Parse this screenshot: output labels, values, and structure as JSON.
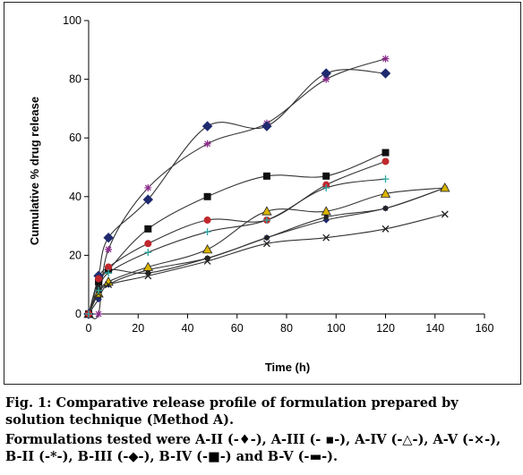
{
  "chart_data": {
    "type": "line",
    "xlabel": "Time (h)",
    "ylabel": "Cumulative % drug release",
    "xlim": [
      0,
      160
    ],
    "ylim": [
      0,
      100
    ],
    "xticks": [
      0,
      20,
      40,
      60,
      80,
      100,
      120,
      140,
      160
    ],
    "yticks": [
      0,
      20,
      40,
      60,
      80,
      100
    ],
    "grid": false,
    "legend": "none",
    "series": [
      {
        "name": "A-II",
        "marker": "diamond-small",
        "color": "#1f2a6e",
        "points": [
          [
            0,
            0
          ],
          [
            4,
            5
          ],
          [
            8,
            10
          ],
          [
            24,
            15
          ],
          [
            48,
            19
          ],
          [
            72,
            26
          ],
          [
            96,
            32
          ],
          [
            120,
            36
          ],
          [
            144,
            43
          ]
        ]
      },
      {
        "name": "A-III",
        "marker": "square-small",
        "color": "#222222",
        "points": [
          [
            0,
            0
          ],
          [
            4,
            9
          ],
          [
            8,
            15
          ],
          [
            24,
            14
          ],
          [
            48,
            19
          ],
          [
            72,
            26
          ],
          [
            96,
            33
          ],
          [
            120,
            36
          ],
          [
            144,
            43
          ]
        ]
      },
      {
        "name": "A-IV",
        "marker": "triangle",
        "color": "#d9b400",
        "points": [
          [
            0,
            0
          ],
          [
            4,
            7
          ],
          [
            8,
            11
          ],
          [
            24,
            16
          ],
          [
            48,
            22
          ],
          [
            72,
            35
          ],
          [
            96,
            35
          ],
          [
            120,
            41
          ],
          [
            144,
            43
          ]
        ]
      },
      {
        "name": "A-V",
        "marker": "x",
        "color": "#222222",
        "points": [
          [
            0,
            0
          ],
          [
            4,
            7
          ],
          [
            8,
            10
          ],
          [
            24,
            13
          ],
          [
            48,
            18
          ],
          [
            72,
            24
          ],
          [
            96,
            26
          ],
          [
            120,
            29
          ],
          [
            144,
            34
          ]
        ]
      },
      {
        "name": "B-II",
        "marker": "star",
        "color": "#8a2a8a",
        "points": [
          [
            0,
            0
          ],
          [
            4,
            0
          ],
          [
            8,
            22
          ],
          [
            24,
            43
          ],
          [
            48,
            58
          ],
          [
            72,
            65
          ],
          [
            96,
            80
          ],
          [
            120,
            87
          ]
        ]
      },
      {
        "name": "B-III",
        "marker": "diamond",
        "color": "#1f2a6e",
        "points": [
          [
            0,
            0
          ],
          [
            4,
            13
          ],
          [
            8,
            26
          ],
          [
            24,
            39
          ],
          [
            48,
            64
          ],
          [
            72,
            64
          ],
          [
            96,
            82
          ],
          [
            120,
            82
          ]
        ]
      },
      {
        "name": "B-IV",
        "marker": "square",
        "color": "#111111",
        "points": [
          [
            0,
            0
          ],
          [
            4,
            11
          ],
          [
            8,
            15
          ],
          [
            24,
            29
          ],
          [
            48,
            40
          ],
          [
            72,
            47
          ],
          [
            96,
            47
          ],
          [
            120,
            55
          ]
        ]
      },
      {
        "name": "B-V",
        "marker": "circle",
        "color": "#c0282d",
        "points": [
          [
            0,
            0
          ],
          [
            4,
            12
          ],
          [
            8,
            16
          ],
          [
            24,
            24
          ],
          [
            48,
            32
          ],
          [
            72,
            32
          ],
          [
            96,
            44
          ],
          [
            120,
            52
          ]
        ]
      },
      {
        "name": "",
        "marker": "plus",
        "color": "#2aa6a0",
        "points": [
          [
            0,
            0
          ],
          [
            4,
            8
          ],
          [
            8,
            14
          ],
          [
            24,
            21
          ],
          [
            48,
            28
          ],
          [
            72,
            32
          ],
          [
            96,
            43
          ],
          [
            120,
            46
          ]
        ]
      }
    ]
  },
  "caption": {
    "title": "Fig. 1: Comparative release profile of formulation prepared by solution technique (Method A).",
    "note": "Formulations tested were A-II (-♦-), A-III (- ▪-), A-IV (-△-), A-V (-×-), B-II (-*-), B-III (-◆-), B-IV (-■-) and B-V (-▬-)."
  }
}
